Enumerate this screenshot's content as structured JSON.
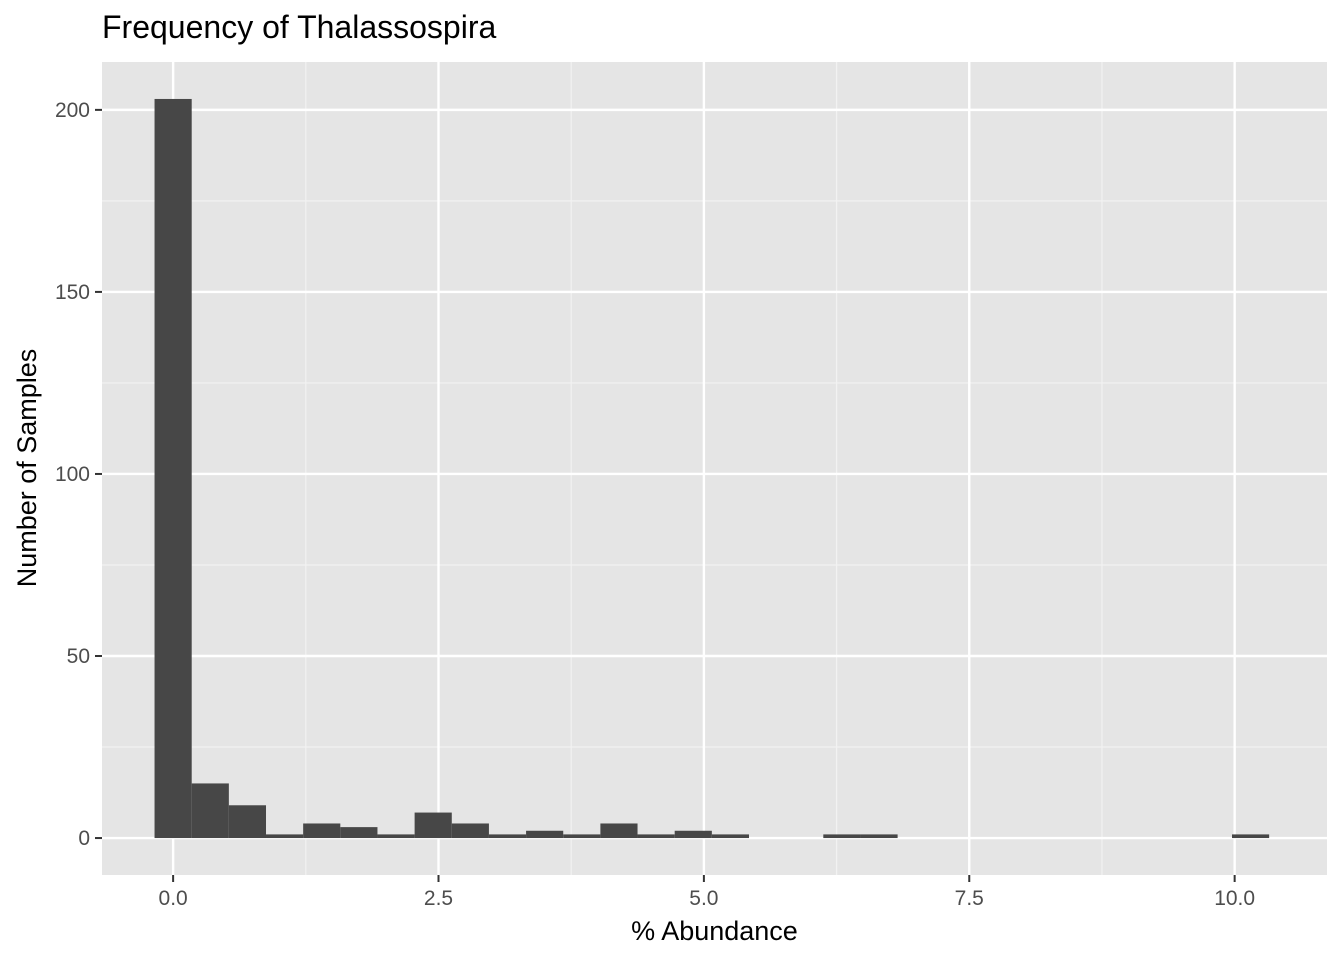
{
  "chart_data": {
    "type": "bar",
    "title": "Frequency of Thalassospira",
    "xlabel": "% Abundance",
    "ylabel": "Number of Samples",
    "xlim": [
      -0.67,
      10.87
    ],
    "ylim": [
      -10.15,
      213.15
    ],
    "x_ticks": [
      0,
      2.5,
      5,
      7.5,
      10
    ],
    "x_tick_labels": [
      "0.0",
      "2.5",
      "5.0",
      "7.5",
      "10.0"
    ],
    "y_ticks": [
      0,
      50,
      100,
      150,
      200
    ],
    "y_tick_labels": [
      "0",
      "50",
      "100",
      "150",
      "200"
    ],
    "bin_width": 0.35,
    "bin_centers": [
      0,
      0.35,
      0.7,
      1.05,
      1.4,
      1.75,
      2.1,
      2.45,
      2.8,
      3.15,
      3.5,
      3.85,
      4.2,
      4.55,
      4.9,
      5.25,
      5.6,
      5.95,
      6.3,
      6.65,
      7.0,
      7.35,
      7.7,
      8.05,
      8.4,
      8.75,
      9.1,
      9.45,
      9.8,
      10.15
    ],
    "values": [
      203,
      15,
      9,
      1,
      4,
      3,
      1,
      7,
      4,
      1,
      2,
      1,
      4,
      1,
      2,
      1,
      0,
      0,
      1,
      1,
      0,
      0,
      0,
      0,
      0,
      0,
      0,
      0,
      0,
      1
    ],
    "bar_color": "#474747",
    "panel_color": "#e5e5e5",
    "grid": true,
    "legend": "none"
  }
}
